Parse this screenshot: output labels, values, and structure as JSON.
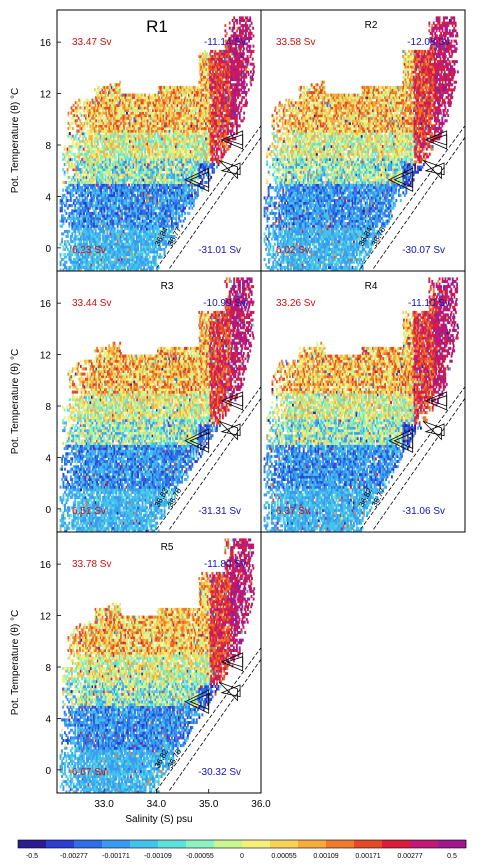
{
  "chart_data": {
    "type": "scatter",
    "xlabel": "Salinity (S) psu",
    "ylabel": "Pot. Temperature (θ) °C",
    "xlim": [
      32.1,
      36.0
    ],
    "ylim": [
      -1.8,
      18.5
    ],
    "xticks": [
      "33.0",
      "34.0",
      "35.0",
      "36.0"
    ],
    "yticks": [
      "0",
      "4",
      "8",
      "12",
      "16"
    ],
    "colorbar": {
      "labels": [
        "-0.5",
        "-0.00277",
        "-0.00171",
        "-0.00109",
        "-0.00055",
        "0",
        "0.00055",
        "0.00109",
        "0.00171",
        "0.00277",
        "0.5"
      ],
      "colors": [
        "#2b1d8f",
        "#2c3fd0",
        "#2f6ee6",
        "#3a9cf0",
        "#45c2ec",
        "#5fe0d8",
        "#8ff0c0",
        "#c8f58e",
        "#f5f07a",
        "#f8d257",
        "#f5ac3d",
        "#ee7b2e",
        "#e44a26",
        "#d81e3a",
        "#c01a78",
        "#9e1a8e"
      ]
    },
    "panels": [
      {
        "name": "R1",
        "top_left": "33.47 Sv",
        "top_right": "-11.14 Sv",
        "bottom_left": "6.23 Sv",
        "bottom_right": "-31.01 Sv",
        "isopycnals": [
          "36.84",
          "36.77"
        ]
      },
      {
        "name": "R2",
        "top_left": "33.58 Sv",
        "top_right": "-12.08 Sv",
        "bottom_left": "6.02 Sv",
        "bottom_right": "-30.07 Sv",
        "isopycnals": [
          "36.84",
          "36.76"
        ]
      },
      {
        "name": "R3",
        "top_left": "33.44 Sv",
        "top_right": "-10.99 Sv",
        "bottom_left": "6.51 Sv",
        "bottom_right": "-31.31 Sv",
        "isopycnals": [
          "36.83",
          "36.76"
        ]
      },
      {
        "name": "R4",
        "top_left": "33.26 Sv",
        "top_right": "-11.10 Sv",
        "bottom_left": "6.37 Sv",
        "bottom_right": "-31.06 Sv",
        "isopycnals": [
          "36.82",
          "36.77"
        ]
      },
      {
        "name": "R5",
        "top_left": "33.78 Sv",
        "top_right": "-11.80 Sv",
        "bottom_left": "6.67 Sv",
        "bottom_right": "-30.32 Sv",
        "isopycnals": [
          "36.82",
          "36.76"
        ]
      }
    ]
  }
}
